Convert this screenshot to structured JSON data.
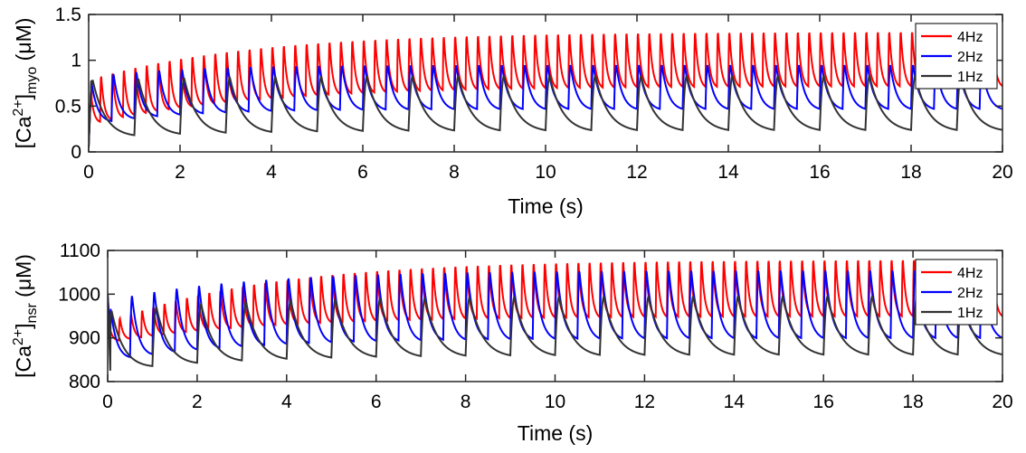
{
  "chart_data": [
    {
      "type": "line",
      "xlabel": "Time (s)",
      "ylabel": {
        "base": "[Ca",
        "sup": "2+",
        "close": "]",
        "sub": "myo",
        "unit": " (μM)"
      },
      "xlim": [
        0,
        20
      ],
      "ylim": [
        0,
        1.5
      ],
      "xticks": [
        "0",
        "2",
        "4",
        "6",
        "8",
        "10",
        "12",
        "14",
        "16",
        "18",
        "20"
      ],
      "yticks": [
        "0",
        "0.5",
        "1",
        "1.5"
      ],
      "ytick_values": [
        0,
        0.5,
        1,
        1.5
      ],
      "legend_position": "top-right",
      "series": [
        {
          "name": "4Hz",
          "color": "#ff0000",
          "freq": 4,
          "base_start": 0.3,
          "base_end": 0.72,
          "peak_start": 0.8,
          "peak_end": 1.33,
          "tau": 3.5,
          "initial": 0.05,
          "first_peak": 0.8
        },
        {
          "name": "2Hz",
          "color": "#0000ff",
          "freq": 2,
          "base_start": 0.3,
          "base_end": 0.47,
          "peak_start": 0.82,
          "peak_end": 0.95,
          "tau": 2.0,
          "initial": 0.05,
          "first_peak": 0.8
        },
        {
          "name": "1Hz",
          "color": "#333333",
          "freq": 1,
          "base_start": 0.16,
          "base_end": 0.24,
          "peak_start": 0.78,
          "peak_end": 0.83,
          "tau": 3.0,
          "initial": 0.05,
          "first_peak": 0.8
        }
      ]
    },
    {
      "type": "line",
      "xlabel": "Time (s)",
      "ylabel": {
        "base": "[Ca",
        "sup": "2+",
        "close": "]",
        "sub": "nsr",
        "unit": " (μM)"
      },
      "xlim": [
        0,
        20
      ],
      "ylim": [
        800,
        1100
      ],
      "xticks": [
        "0",
        "2",
        "4",
        "6",
        "8",
        "10",
        "12",
        "14",
        "16",
        "18",
        "20"
      ],
      "yticks": [
        "800",
        "900",
        "1000",
        "1100"
      ],
      "ytick_values": [
        800,
        900,
        1000,
        1100
      ],
      "legend_position": "top-right",
      "series": [
        {
          "name": "4Hz",
          "color": "#ff0000",
          "freq": 4,
          "base_start": 890,
          "base_end": 950,
          "peak_start": 935,
          "peak_end": 1083,
          "tau": 3.5,
          "initial": 1000,
          "first_peak": 900
        },
        {
          "name": "2Hz",
          "color": "#0000ff",
          "freq": 2,
          "base_start": 848,
          "base_end": 900,
          "peak_start": 985,
          "peak_end": 1055,
          "tau": 3.0,
          "initial": 1000,
          "first_peak": 900
        },
        {
          "name": "1Hz",
          "color": "#333333",
          "freq": 1,
          "base_start": 825,
          "base_end": 862,
          "peak_start": 960,
          "peak_end": 995,
          "tau": 3.0,
          "initial": 1000,
          "first_peak": 820
        }
      ]
    }
  ]
}
